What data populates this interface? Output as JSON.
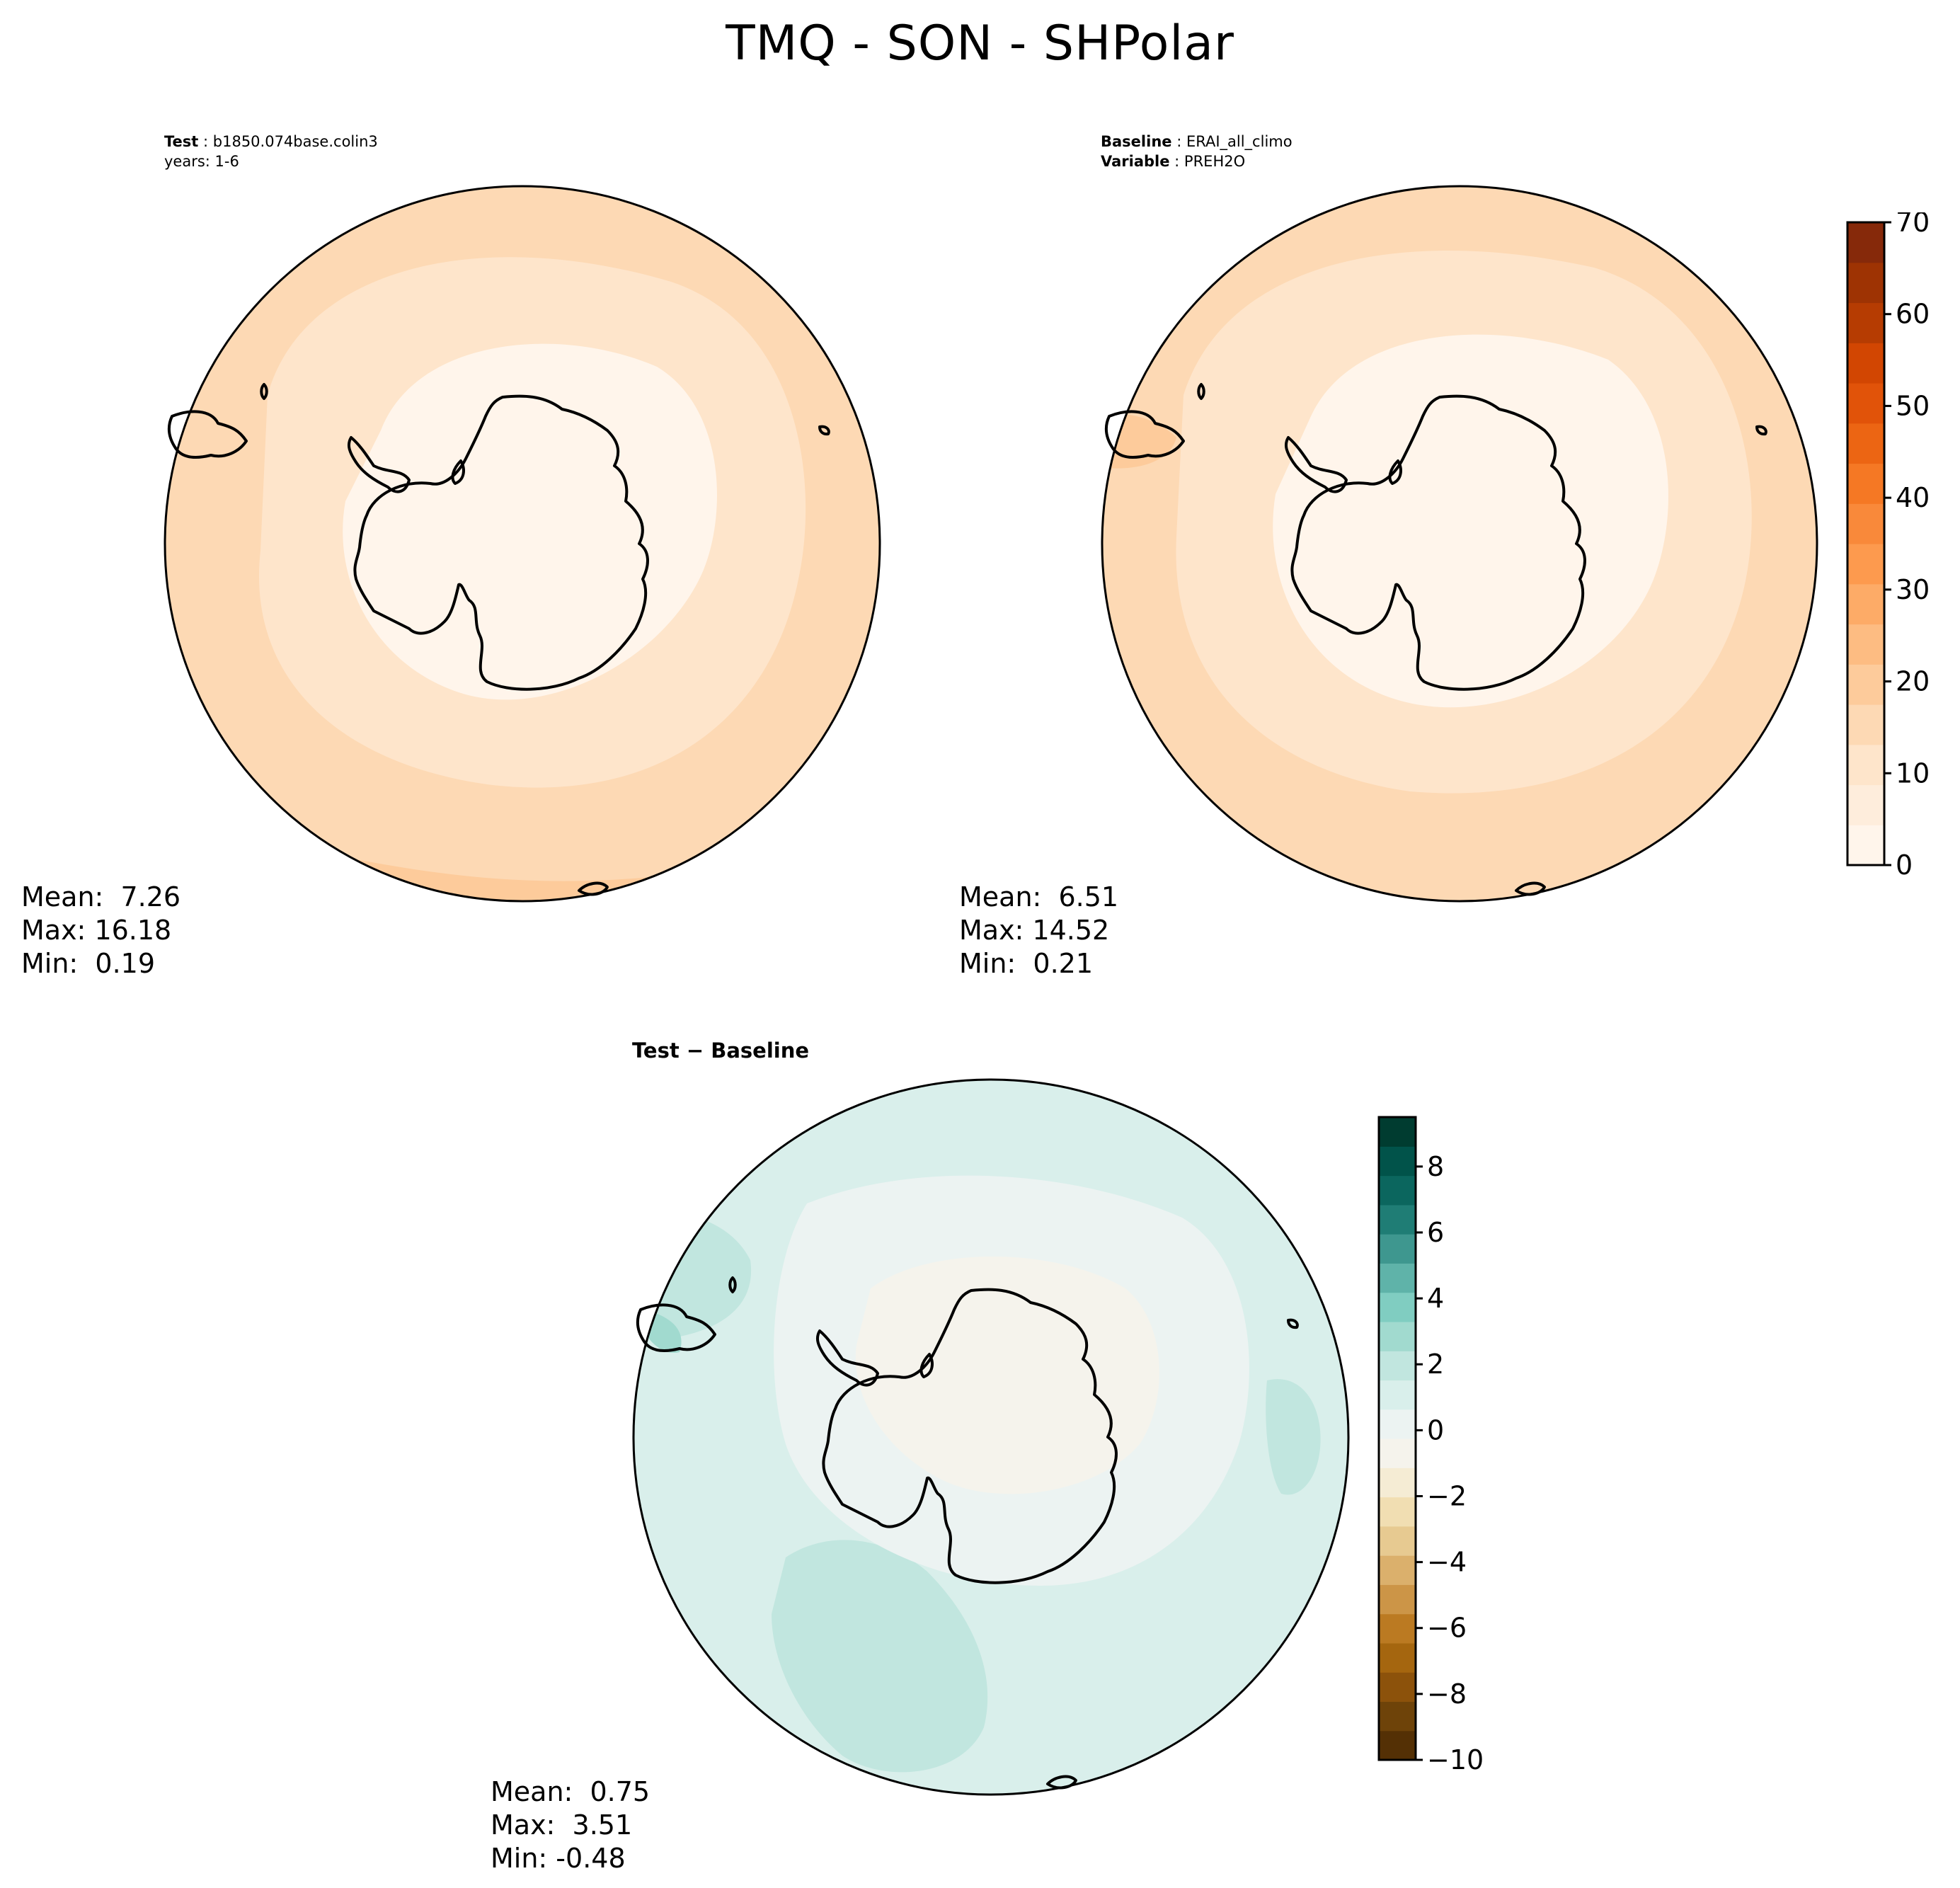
{
  "title": "TMQ - SON - SHPolar",
  "panels": {
    "test": {
      "label": "Test",
      "case": "b1850.074base.colin3",
      "years": "years: 1-6",
      "stats": {
        "mean": "Mean:  7.26",
        "max": "Max: 16.18",
        "min": "Min:  0.19"
      }
    },
    "baseline": {
      "label": "Baseline",
      "case": "ERAI_all_climo",
      "variable_label": "Variable",
      "variable": "PREH2O",
      "stats": {
        "mean": "Mean:  6.51",
        "max": "Max: 14.52",
        "min": "Min:  0.21"
      }
    },
    "diff": {
      "label": "Test − Baseline",
      "stats": {
        "mean": "Mean:  0.75",
        "max": "Max:  3.51",
        "min": "Min: -0.48"
      }
    }
  },
  "colorbars": {
    "field": {
      "range": [
        0,
        70
      ],
      "ticks": [
        "0",
        "10",
        "20",
        "30",
        "40",
        "50",
        "60",
        "70"
      ],
      "colors": [
        "#fff5eb",
        "#feeddc",
        "#fee5cb",
        "#fdd9b4",
        "#fdcb9b",
        "#fdbc82",
        "#fdab67",
        "#fd9a4e",
        "#f9893a",
        "#f57824",
        "#ec6513",
        "#e15309",
        "#d24602",
        "#b63c02",
        "#9e3303",
        "#86290a"
      ]
    },
    "diff": {
      "range": [
        -10,
        9.5
      ],
      "ticks": [
        "8",
        "6",
        "4",
        "2",
        "0",
        "−2",
        "−4",
        "−6",
        "−8",
        "−10"
      ],
      "colors": [
        "#543005",
        "#6e4309",
        "#8c520b",
        "#a5660f",
        "#bb7a22",
        "#cc9547",
        "#dbb06c",
        "#e7ca91",
        "#f1deb2",
        "#f5ecd4",
        "#f5f3ec",
        "#ecf3f2",
        "#d9efeb",
        "#c1e6df",
        "#a1dacf",
        "#80cdc1",
        "#5fb3a9",
        "#3e978f",
        "#1f7d75",
        "#0b665e",
        "#01534a",
        "#003c30"
      ]
    }
  }
}
